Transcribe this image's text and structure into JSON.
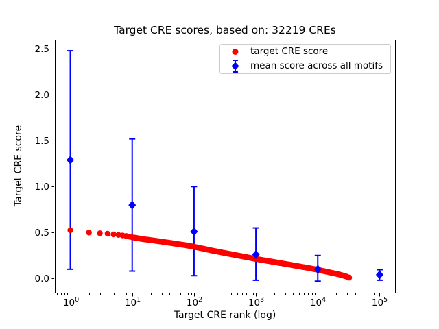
{
  "colors": {
    "red": "#ff0000",
    "blue": "#0000ff",
    "text": "#000000",
    "axis": "#000000",
    "legend_border": "#cccccc",
    "background": "#ffffff"
  },
  "chart_data": {
    "type": "scatter",
    "title": "Target CRE scores, based on: 32219 CREs",
    "xlabel": "Target CRE rank (log)",
    "ylabel": "Target CRE score",
    "x_scale": "log",
    "xlim_log10": [
      -0.25,
      5.25
    ],
    "ylim": [
      -0.155,
      2.6
    ],
    "grid": false,
    "legend_position": "upper right",
    "x_tick_base": "10",
    "x_tick_exponents": [
      0,
      1,
      2,
      3,
      4,
      5
    ],
    "y_tick_labels": [
      "0.0",
      "0.5",
      "1.0",
      "1.5",
      "2.0",
      "2.5"
    ],
    "y_tick_values": [
      0.0,
      0.5,
      1.0,
      1.5,
      2.0,
      2.5
    ],
    "series": [
      {
        "name": "target CRE score",
        "marker": "circle",
        "color": "#ff0000",
        "n_points": 32219,
        "max_rank": 32219,
        "band_anchor_points": [
          [
            1,
            0.525
          ],
          [
            2,
            0.5
          ],
          [
            3,
            0.492
          ],
          [
            4,
            0.487
          ],
          [
            5,
            0.48
          ],
          [
            6,
            0.474
          ],
          [
            7,
            0.468
          ],
          [
            8,
            0.462
          ],
          [
            9,
            0.455
          ],
          [
            10,
            0.448
          ],
          [
            15,
            0.428
          ],
          [
            25,
            0.408
          ],
          [
            40,
            0.388
          ],
          [
            70,
            0.363
          ],
          [
            100,
            0.345
          ],
          [
            200,
            0.302
          ],
          [
            400,
            0.263
          ],
          [
            700,
            0.232
          ],
          [
            1000,
            0.212
          ],
          [
            2000,
            0.178
          ],
          [
            4000,
            0.143
          ],
          [
            7000,
            0.114
          ],
          [
            10000,
            0.094
          ],
          [
            15000,
            0.068
          ],
          [
            22000,
            0.044
          ],
          [
            28000,
            0.024
          ],
          [
            32219,
            0.008
          ]
        ]
      },
      {
        "name": "mean score across all motifs",
        "marker": "diamond",
        "color": "#0000ff",
        "x": [
          1,
          10,
          100,
          1000,
          10000,
          100000
        ],
        "mean": [
          1.29,
          0.8,
          0.51,
          0.26,
          0.1,
          0.04
        ],
        "err_low": [
          0.1,
          0.08,
          0.03,
          -0.02,
          -0.03,
          -0.02
        ],
        "err_high": [
          2.48,
          1.52,
          1.0,
          0.55,
          0.25,
          0.095
        ]
      }
    ]
  }
}
